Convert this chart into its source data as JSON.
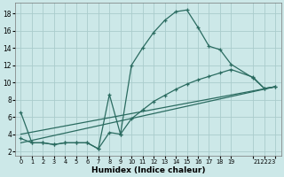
{
  "xlabel": "Humidex (Indice chaleur)",
  "bg_color": "#cce8e8",
  "grid_color": "#aacccc",
  "line_color": "#2a6b60",
  "xlim": [
    -0.5,
    23.5
  ],
  "ylim": [
    1.5,
    19.2
  ],
  "yticks": [
    2,
    4,
    6,
    8,
    10,
    12,
    14,
    16,
    18
  ],
  "xticks": [
    0,
    1,
    2,
    3,
    4,
    5,
    6,
    7,
    8,
    9,
    10,
    11,
    12,
    13,
    14,
    15,
    16,
    17,
    18,
    19,
    21,
    22,
    23
  ],
  "xtick_labels": [
    "0",
    "1",
    "2",
    "3",
    "4",
    "5",
    "6",
    "7",
    "8",
    "9",
    "10",
    "11",
    "12",
    "13",
    "14",
    "15",
    "16",
    "17",
    "18",
    "19",
    " ",
    "212223",
    ""
  ],
  "curve1_x": [
    0,
    1,
    2,
    3,
    4,
    5,
    6,
    7,
    8,
    9,
    10,
    11,
    12,
    13,
    14,
    15,
    16,
    17,
    18,
    19,
    21,
    22,
    23
  ],
  "curve1_y": [
    6.5,
    3.0,
    3.0,
    2.8,
    3.0,
    3.0,
    3.0,
    2.3,
    8.6,
    4.0,
    12.0,
    14.0,
    15.8,
    17.2,
    18.2,
    18.4,
    16.4,
    14.2,
    13.8,
    12.1,
    10.5,
    9.3,
    9.5
  ],
  "curve2_x": [
    0,
    1,
    2,
    3,
    4,
    5,
    6,
    7,
    8,
    9,
    10,
    11,
    12,
    13,
    14,
    15,
    16,
    17,
    18,
    19,
    21,
    22,
    23
  ],
  "curve2_y": [
    3.5,
    3.0,
    3.0,
    2.8,
    3.0,
    3.0,
    3.0,
    2.3,
    4.2,
    4.0,
    5.8,
    6.8,
    7.8,
    8.5,
    9.2,
    9.8,
    10.3,
    10.7,
    11.1,
    11.5,
    10.6,
    9.3,
    9.5
  ],
  "line3_x": [
    0,
    23
  ],
  "line3_y": [
    3.0,
    9.5
  ],
  "line4_x": [
    0,
    23
  ],
  "line4_y": [
    4.0,
    9.5
  ]
}
